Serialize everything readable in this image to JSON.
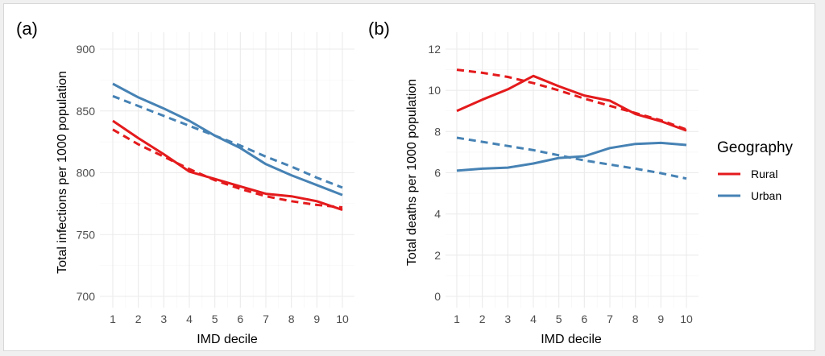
{
  "chart_data": [
    {
      "type": "line",
      "panel_label": "(a)",
      "xlabel": "IMD decile",
      "ylabel": "Total infections per 1000 population",
      "x": [
        1,
        2,
        3,
        4,
        5,
        6,
        7,
        8,
        9,
        10
      ],
      "xlim": [
        1,
        10
      ],
      "ylim": [
        700,
        900
      ],
      "y_ticks": [
        700,
        750,
        800,
        850,
        900
      ],
      "series": [
        {
          "name": "Rural",
          "style": "solid",
          "color": "#e41a1c",
          "values": [
            842,
            828,
            815,
            801,
            795,
            789,
            783,
            781,
            777,
            770
          ]
        },
        {
          "name": "Rural",
          "style": "dashed",
          "color": "#e41a1c",
          "values": [
            835,
            823,
            813,
            803,
            794,
            787,
            781,
            777,
            774,
            772
          ]
        },
        {
          "name": "Urban",
          "style": "solid",
          "color": "#4682b4",
          "values": [
            872,
            861,
            852,
            842,
            830,
            820,
            807,
            798,
            790,
            782
          ]
        },
        {
          "name": "Urban",
          "style": "dashed",
          "color": "#4682b4",
          "values": [
            862,
            854,
            846,
            838,
            830,
            822,
            813,
            805,
            796,
            788
          ]
        }
      ]
    },
    {
      "type": "line",
      "panel_label": "(b)",
      "xlabel": "IMD decile",
      "ylabel": "Total deaths per 1000 population",
      "x": [
        1,
        2,
        3,
        4,
        5,
        6,
        7,
        8,
        9,
        10
      ],
      "xlim": [
        1,
        10
      ],
      "ylim": [
        0,
        12
      ],
      "y_ticks": [
        0,
        2,
        4,
        6,
        8,
        10,
        12
      ],
      "series": [
        {
          "name": "Rural",
          "style": "solid",
          "color": "#e41a1c",
          "values": [
            9.0,
            9.55,
            10.05,
            10.7,
            10.2,
            9.75,
            9.5,
            8.85,
            8.5,
            8.05
          ]
        },
        {
          "name": "Rural",
          "style": "dashed",
          "color": "#e41a1c",
          "values": [
            11.0,
            10.85,
            10.65,
            10.35,
            10.0,
            9.6,
            9.25,
            8.9,
            8.55,
            8.1
          ]
        },
        {
          "name": "Urban",
          "style": "solid",
          "color": "#4682b4",
          "values": [
            6.1,
            6.2,
            6.25,
            6.45,
            6.72,
            6.8,
            7.2,
            7.4,
            7.45,
            7.35
          ]
        },
        {
          "name": "Urban",
          "style": "dashed",
          "color": "#4682b4",
          "values": [
            7.7,
            7.5,
            7.3,
            7.1,
            6.85,
            6.6,
            6.4,
            6.2,
            5.98,
            5.72
          ]
        }
      ]
    }
  ],
  "legend": {
    "title": "Geography",
    "items": [
      {
        "label": "Rural",
        "color": "#e41a1c"
      },
      {
        "label": "Urban",
        "color": "#4682b4"
      }
    ]
  }
}
